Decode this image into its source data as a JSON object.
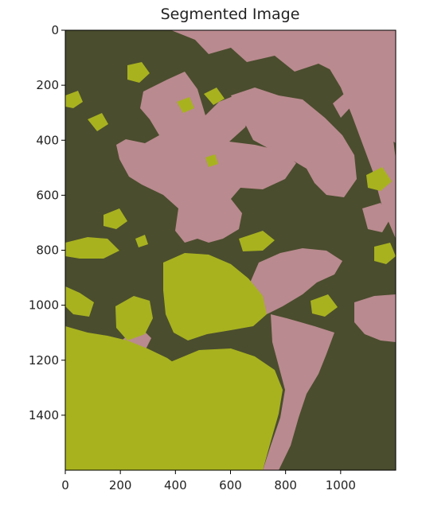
{
  "chart_data": {
    "type": "heatmap",
    "title": "Segmented Image",
    "xlabel": "",
    "ylabel": "",
    "xlim": [
      0,
      1200
    ],
    "ylim": [
      1600,
      0
    ],
    "x_ticks": [
      0,
      200,
      400,
      600,
      800,
      1000
    ],
    "y_ticks": [
      0,
      200,
      400,
      600,
      800,
      1000,
      1200,
      1400
    ],
    "grid": false,
    "legend": "none",
    "segment_colors": {
      "background": "#4a4d2e",
      "flower": "#b98a8f",
      "leaf": "#a8b21f"
    }
  }
}
